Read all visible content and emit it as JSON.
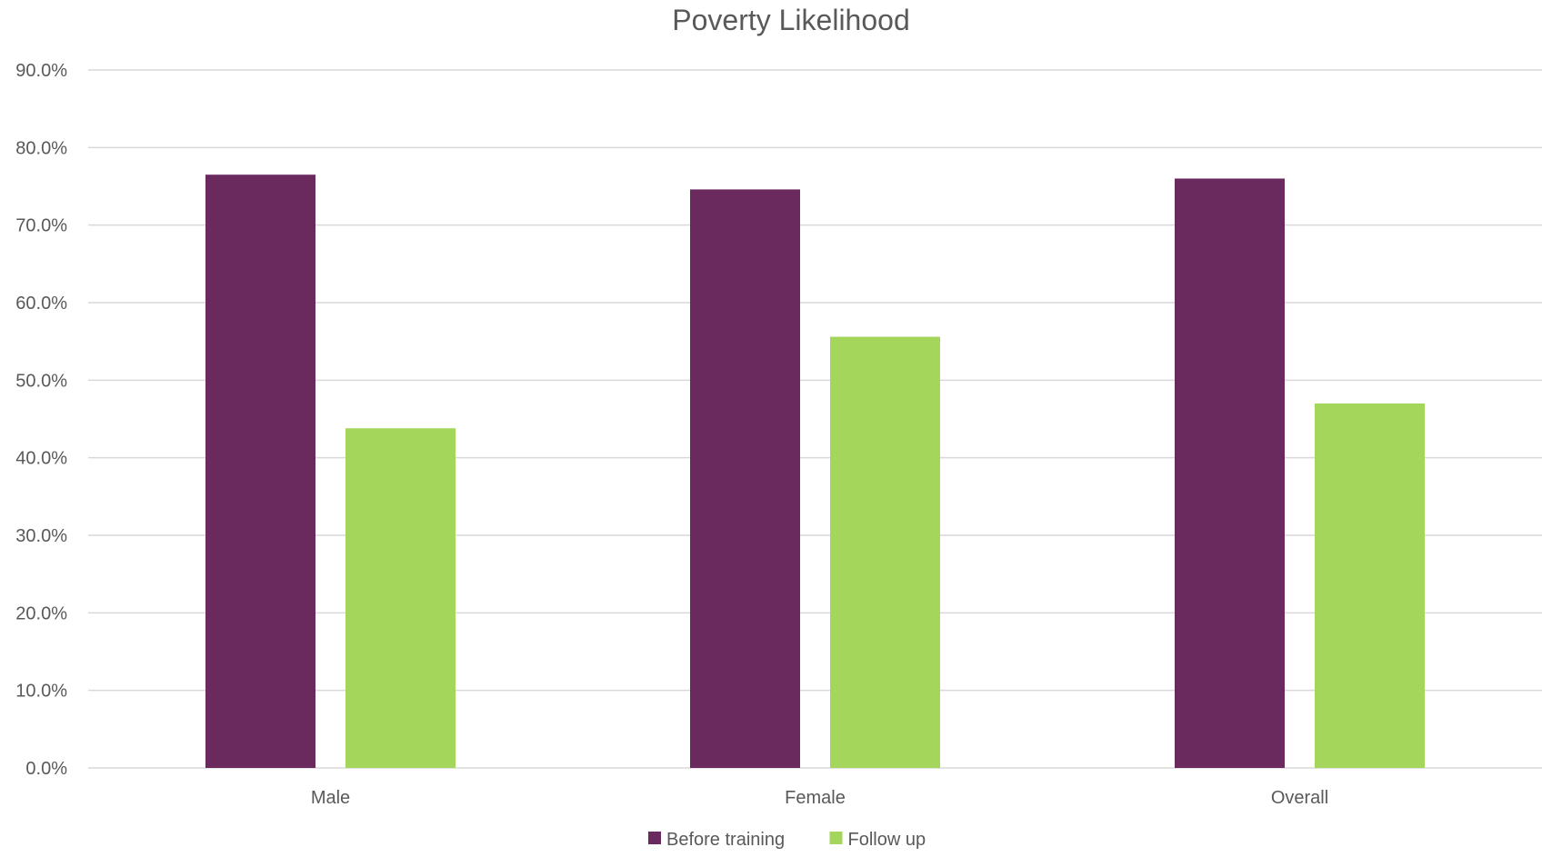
{
  "chart_data": {
    "type": "bar",
    "title": "Poverty Likelihood",
    "categories": [
      "Male",
      "Female",
      "Overall"
    ],
    "series": [
      {
        "name": "Before training",
        "color": "#6B2A5E",
        "values": [
          76.5,
          74.6,
          76.0
        ]
      },
      {
        "name": "Follow up",
        "color": "#A5D65C",
        "values": [
          43.8,
          55.6,
          47.0
        ]
      }
    ],
    "ylim": [
      0,
      90
    ],
    "yticks": [
      "0.0%",
      "10.0%",
      "20.0%",
      "30.0%",
      "40.0%",
      "50.0%",
      "60.0%",
      "70.0%",
      "80.0%",
      "90.0%"
    ],
    "grid": true,
    "legend_position": "bottom"
  }
}
